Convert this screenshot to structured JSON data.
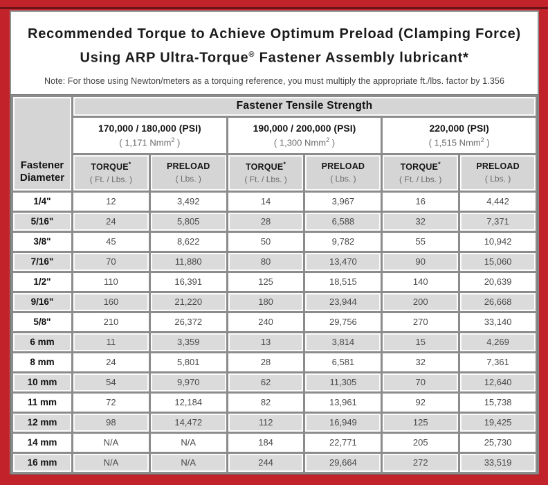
{
  "header": {
    "title_line1": "Recommended Torque to Achieve Optimum Preload (Clamping Force)",
    "title_line2_pre": "Using ARP Ultra-Torque",
    "title_line2_sup": "®",
    "title_line2_post": " Fastener Assembly lubricant*",
    "note": "Note: For those using Newton/meters as a torquing reference, you must multiply the appropriate ft./lbs. factor by 1.356"
  },
  "table": {
    "corner_header": "Fastener Diameter",
    "main_header": "Fastener Tensile Strength",
    "strength_groups": [
      {
        "psi": "170,000 / 180,000 (PSI)",
        "nmm_pre": "( 1,171 Nmm",
        "nmm_sup": "2",
        "nmm_post": " )"
      },
      {
        "psi": "190,000 / 200,000 (PSI)",
        "nmm_pre": "( 1,300 Nmm",
        "nmm_sup": "2",
        "nmm_post": " )"
      },
      {
        "psi": "220,000 (PSI)",
        "nmm_pre": "( 1,515 Nmm",
        "nmm_sup": "2",
        "nmm_post": " )"
      }
    ],
    "col_headers": {
      "torque_label": "TORQUE",
      "torque_sup": "*",
      "torque_sub": "( Ft. / Lbs. )",
      "preload_label": "PRELOAD",
      "preload_sub": "( Lbs. )"
    },
    "rows": [
      {
        "diameter": "1/4\"",
        "values": [
          "12",
          "3,492",
          "14",
          "3,967",
          "16",
          "4,442"
        ]
      },
      {
        "diameter": "5/16\"",
        "values": [
          "24",
          "5,805",
          "28",
          "6,588",
          "32",
          "7,371"
        ]
      },
      {
        "diameter": "3/8\"",
        "values": [
          "45",
          "8,622",
          "50",
          "9,782",
          "55",
          "10,942"
        ]
      },
      {
        "diameter": "7/16\"",
        "values": [
          "70",
          "11,880",
          "80",
          "13,470",
          "90",
          "15,060"
        ]
      },
      {
        "diameter": "1/2\"",
        "values": [
          "110",
          "16,391",
          "125",
          "18,515",
          "140",
          "20,639"
        ]
      },
      {
        "diameter": "9/16\"",
        "values": [
          "160",
          "21,220",
          "180",
          "23,944",
          "200",
          "26,668"
        ]
      },
      {
        "diameter": "5/8\"",
        "values": [
          "210",
          "26,372",
          "240",
          "29,756",
          "270",
          "33,140"
        ]
      },
      {
        "diameter": "6 mm",
        "values": [
          "11",
          "3,359",
          "13",
          "3,814",
          "15",
          "4,269"
        ]
      },
      {
        "diameter": "8 mm",
        "values": [
          "24",
          "5,801",
          "28",
          "6,581",
          "32",
          "7,361"
        ]
      },
      {
        "diameter": "10 mm",
        "values": [
          "54",
          "9,970",
          "62",
          "11,305",
          "70",
          "12,640"
        ]
      },
      {
        "diameter": "11 mm",
        "values": [
          "72",
          "12,184",
          "82",
          "13,961",
          "92",
          "15,738"
        ]
      },
      {
        "diameter": "12 mm",
        "values": [
          "98",
          "14,472",
          "112",
          "16,949",
          "125",
          "19,425"
        ]
      },
      {
        "diameter": "14 mm",
        "values": [
          "N/A",
          "N/A",
          "184",
          "22,771",
          "205",
          "25,730"
        ]
      },
      {
        "diameter": "16 mm",
        "values": [
          "N/A",
          "N/A",
          "244",
          "29,664",
          "272",
          "33,519"
        ]
      }
    ]
  },
  "colors": {
    "frame_red": "#c2232a",
    "dark_line": "#6b151a",
    "grid_gray": "#8c8c8c",
    "header_gray": "#d5d5d5",
    "alt_row_gray": "#dbdbdb"
  }
}
